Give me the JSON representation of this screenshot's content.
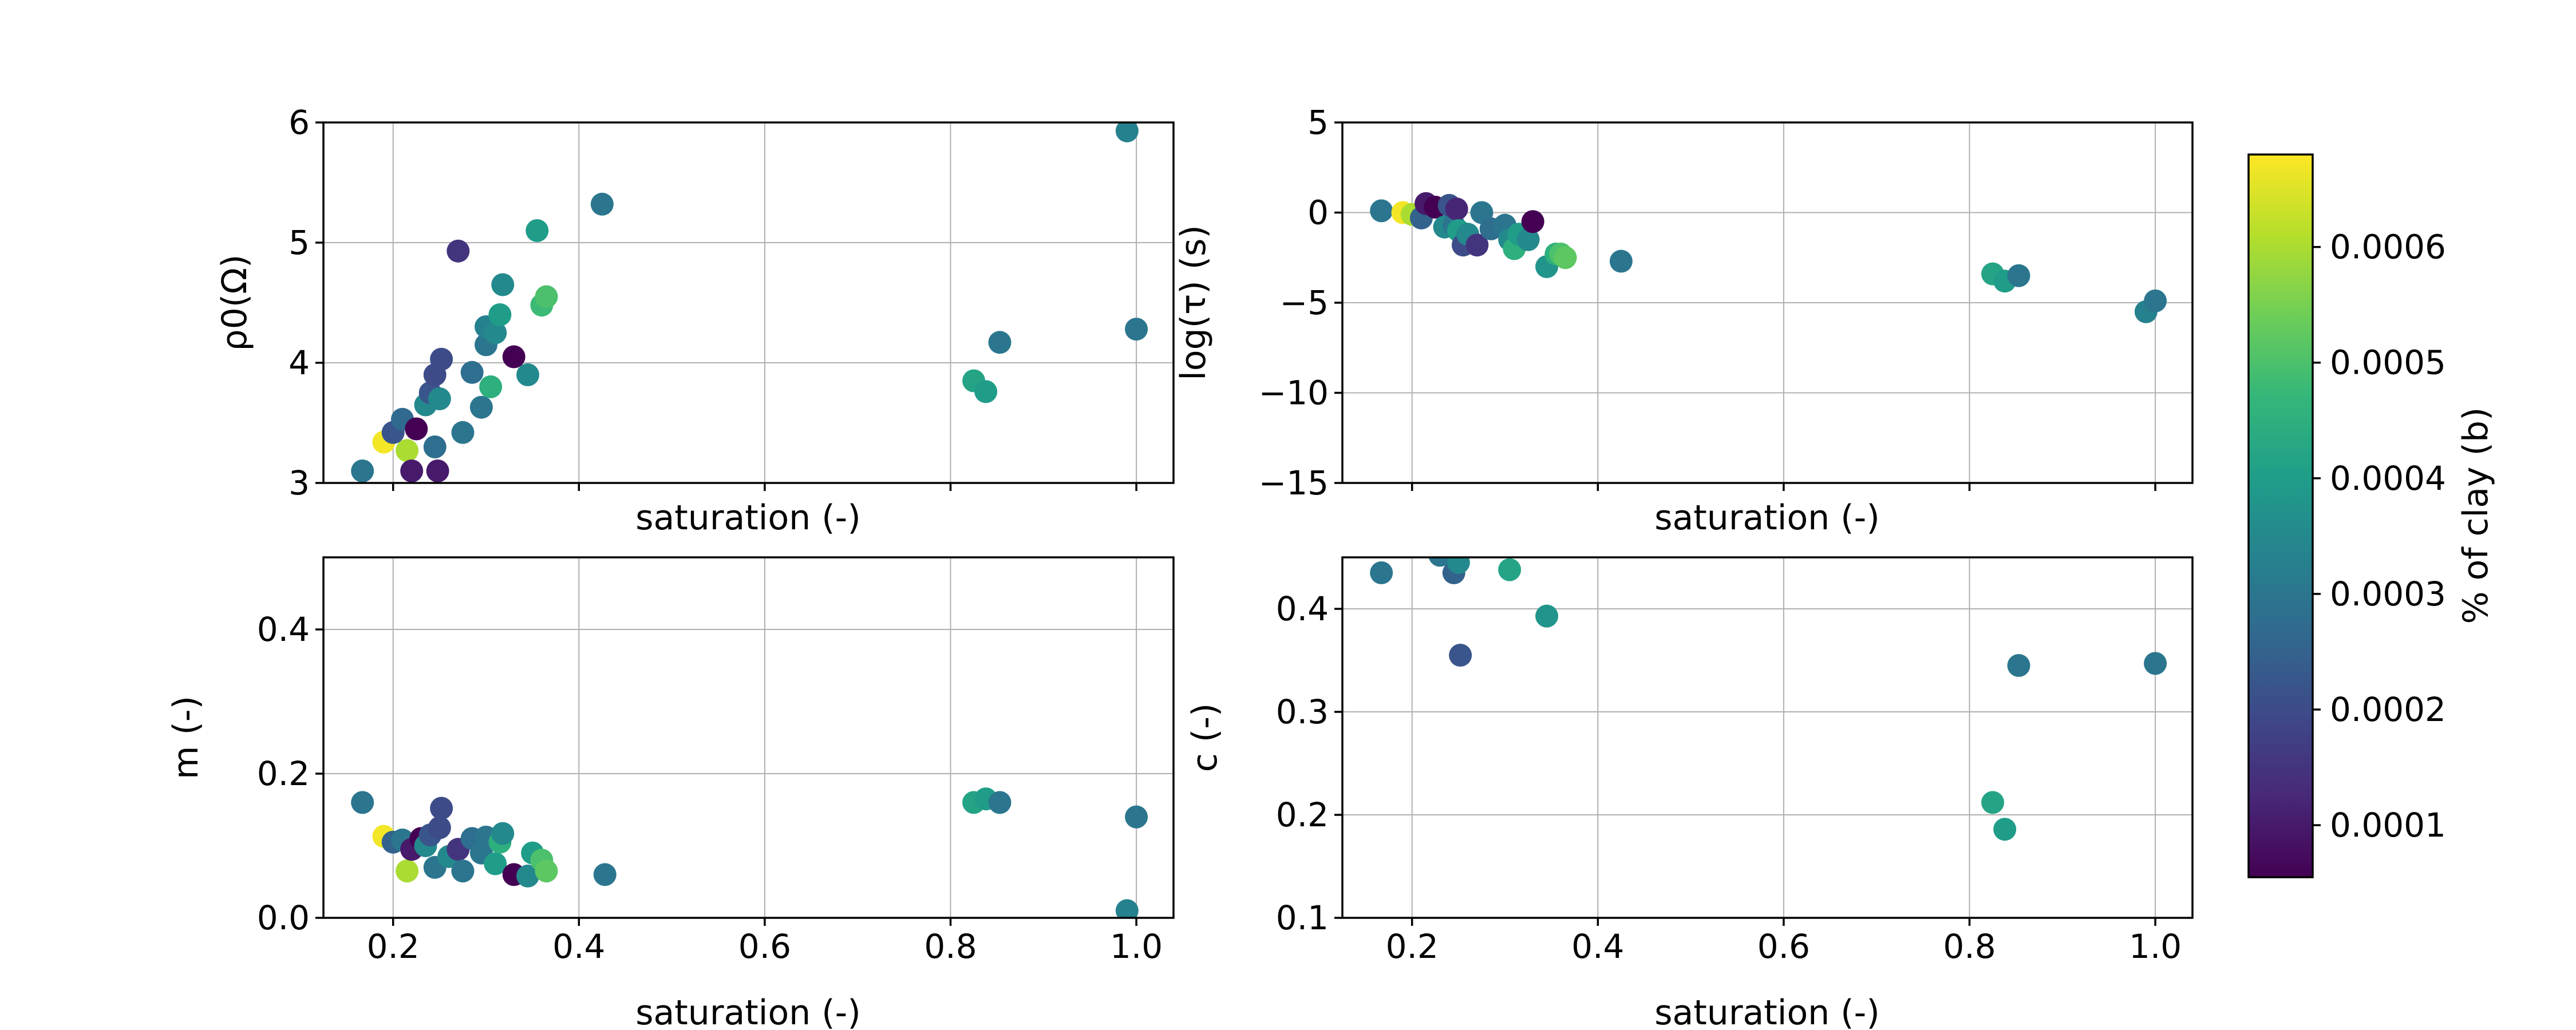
{
  "colors": {
    "viridis": [
      "#440154",
      "#482878",
      "#3e4989",
      "#31688e",
      "#26828e",
      "#1f9e89",
      "#35b779",
      "#6ece58",
      "#b5de2b",
      "#fde725"
    ]
  },
  "chart_data": [
    {
      "type": "scatter",
      "xlabel": "saturation (-)",
      "ylabel": "ρ0(Ω)",
      "ylim": [
        3,
        6
      ],
      "xlim": [
        0.125,
        1.04
      ],
      "yticks": [
        "3",
        "4",
        "5",
        "6"
      ],
      "xticks": [],
      "grid": true,
      "points": [
        {
          "x": 0.167,
          "y": 3.1,
          "c": 0.0003
        },
        {
          "x": 0.19,
          "y": 3.34,
          "c": 0.00067
        },
        {
          "x": 0.2,
          "y": 3.42,
          "c": 0.00022
        },
        {
          "x": 0.21,
          "y": 3.53,
          "c": 0.00027
        },
        {
          "x": 0.215,
          "y": 3.27,
          "c": 0.0006
        },
        {
          "x": 0.22,
          "y": 3.1,
          "c": 0.0001
        },
        {
          "x": 0.225,
          "y": 3.45,
          "c": 5e-05
        },
        {
          "x": 0.235,
          "y": 3.65,
          "c": 0.00035
        },
        {
          "x": 0.24,
          "y": 3.75,
          "c": 0.00022
        },
        {
          "x": 0.245,
          "y": 3.9,
          "c": 0.0002
        },
        {
          "x": 0.245,
          "y": 3.3,
          "c": 0.00028
        },
        {
          "x": 0.248,
          "y": 3.1,
          "c": 0.0001
        },
        {
          "x": 0.25,
          "y": 3.7,
          "c": 0.00035
        },
        {
          "x": 0.252,
          "y": 4.03,
          "c": 0.0002
        },
        {
          "x": 0.27,
          "y": 4.93,
          "c": 0.00015
        },
        {
          "x": 0.275,
          "y": 3.42,
          "c": 0.0003
        },
        {
          "x": 0.285,
          "y": 3.92,
          "c": 0.00028
        },
        {
          "x": 0.295,
          "y": 3.63,
          "c": 0.0003
        },
        {
          "x": 0.3,
          "y": 4.15,
          "c": 0.0003
        },
        {
          "x": 0.3,
          "y": 4.3,
          "c": 0.00033
        },
        {
          "x": 0.305,
          "y": 3.8,
          "c": 0.00045
        },
        {
          "x": 0.31,
          "y": 4.25,
          "c": 0.00035
        },
        {
          "x": 0.315,
          "y": 4.4,
          "c": 0.0004
        },
        {
          "x": 0.318,
          "y": 4.65,
          "c": 0.00035
        },
        {
          "x": 0.33,
          "y": 4.05,
          "c": 5e-05
        },
        {
          "x": 0.345,
          "y": 3.9,
          "c": 0.00035
        },
        {
          "x": 0.355,
          "y": 5.1,
          "c": 0.0004
        },
        {
          "x": 0.36,
          "y": 4.48,
          "c": 0.00048
        },
        {
          "x": 0.365,
          "y": 4.55,
          "c": 0.0005
        },
        {
          "x": 0.425,
          "y": 5.32,
          "c": 0.0003
        },
        {
          "x": 0.825,
          "y": 3.85,
          "c": 0.00042
        },
        {
          "x": 0.838,
          "y": 3.76,
          "c": 0.0004
        },
        {
          "x": 0.853,
          "y": 4.17,
          "c": 0.0003
        },
        {
          "x": 0.99,
          "y": 5.93,
          "c": 0.00033
        },
        {
          "x": 1.0,
          "y": 4.28,
          "c": 0.0003
        }
      ]
    },
    {
      "type": "scatter",
      "xlabel": "saturation (-)",
      "ylabel": "log(τ) (s)",
      "ylim": [
        -15,
        5
      ],
      "xlim": [
        0.125,
        1.04
      ],
      "yticks": [
        "−15",
        "−10",
        "−5",
        "0",
        "5"
      ],
      "xticks": [],
      "grid": true,
      "points": [
        {
          "x": 0.167,
          "y": 0.1,
          "c": 0.0003
        },
        {
          "x": 0.19,
          "y": 0.0,
          "c": 0.00067
        },
        {
          "x": 0.2,
          "y": -0.1,
          "c": 0.0006
        },
        {
          "x": 0.21,
          "y": -0.3,
          "c": 0.00025
        },
        {
          "x": 0.215,
          "y": 0.5,
          "c": 0.0001
        },
        {
          "x": 0.225,
          "y": 0.3,
          "c": 5e-05
        },
        {
          "x": 0.235,
          "y": -0.8,
          "c": 0.00035
        },
        {
          "x": 0.24,
          "y": 0.4,
          "c": 0.00022
        },
        {
          "x": 0.245,
          "y": -0.7,
          "c": 0.0003
        },
        {
          "x": 0.248,
          "y": 0.2,
          "c": 0.00012
        },
        {
          "x": 0.25,
          "y": -1.0,
          "c": 0.0004
        },
        {
          "x": 0.255,
          "y": -1.8,
          "c": 0.0002
        },
        {
          "x": 0.26,
          "y": -1.2,
          "c": 0.00035
        },
        {
          "x": 0.27,
          "y": -1.8,
          "c": 0.00015
        },
        {
          "x": 0.275,
          "y": 0.0,
          "c": 0.0003
        },
        {
          "x": 0.285,
          "y": -0.9,
          "c": 0.00028
        },
        {
          "x": 0.3,
          "y": -0.7,
          "c": 0.0003
        },
        {
          "x": 0.305,
          "y": -1.5,
          "c": 0.00035
        },
        {
          "x": 0.31,
          "y": -2.0,
          "c": 0.00045
        },
        {
          "x": 0.315,
          "y": -1.2,
          "c": 0.0004
        },
        {
          "x": 0.325,
          "y": -1.5,
          "c": 0.00035
        },
        {
          "x": 0.33,
          "y": -0.5,
          "c": 5e-05
        },
        {
          "x": 0.345,
          "y": -3.0,
          "c": 0.00038
        },
        {
          "x": 0.355,
          "y": -2.3,
          "c": 0.00045
        },
        {
          "x": 0.36,
          "y": -2.3,
          "c": 0.0005
        },
        {
          "x": 0.365,
          "y": -2.5,
          "c": 0.00052
        },
        {
          "x": 0.425,
          "y": -2.7,
          "c": 0.0003
        },
        {
          "x": 0.825,
          "y": -3.4,
          "c": 0.00042
        },
        {
          "x": 0.838,
          "y": -3.8,
          "c": 0.0004
        },
        {
          "x": 0.853,
          "y": -3.5,
          "c": 0.0003
        },
        {
          "x": 0.99,
          "y": -5.5,
          "c": 0.00033
        },
        {
          "x": 1.0,
          "y": -4.9,
          "c": 0.0003
        }
      ]
    },
    {
      "type": "scatter",
      "xlabel": "saturation (-)",
      "ylabel": "m (-)",
      "ylim": [
        0.0,
        0.5
      ],
      "xlim": [
        0.125,
        1.04
      ],
      "yticks": [
        "0.0",
        "0.2",
        "0.4"
      ],
      "xticks": [
        "0.2",
        "0.4",
        "0.6",
        "0.8",
        "1.0"
      ],
      "grid": true,
      "points": [
        {
          "x": 0.167,
          "y": 0.16,
          "c": 0.0003
        },
        {
          "x": 0.19,
          "y": 0.113,
          "c": 0.00067
        },
        {
          "x": 0.2,
          "y": 0.105,
          "c": 0.00025
        },
        {
          "x": 0.21,
          "y": 0.108,
          "c": 0.0003
        },
        {
          "x": 0.215,
          "y": 0.065,
          "c": 0.0006
        },
        {
          "x": 0.22,
          "y": 0.095,
          "c": 0.0001
        },
        {
          "x": 0.23,
          "y": 0.11,
          "c": 5e-05
        },
        {
          "x": 0.235,
          "y": 0.1,
          "c": 0.00035
        },
        {
          "x": 0.24,
          "y": 0.115,
          "c": 0.00022
        },
        {
          "x": 0.245,
          "y": 0.07,
          "c": 0.0003
        },
        {
          "x": 0.25,
          "y": 0.125,
          "c": 0.0002
        },
        {
          "x": 0.252,
          "y": 0.152,
          "c": 0.0002
        },
        {
          "x": 0.26,
          "y": 0.085,
          "c": 0.00035
        },
        {
          "x": 0.27,
          "y": 0.095,
          "c": 0.00015
        },
        {
          "x": 0.275,
          "y": 0.065,
          "c": 0.0003
        },
        {
          "x": 0.285,
          "y": 0.11,
          "c": 0.00028
        },
        {
          "x": 0.295,
          "y": 0.09,
          "c": 0.0003
        },
        {
          "x": 0.3,
          "y": 0.112,
          "c": 0.0003
        },
        {
          "x": 0.31,
          "y": 0.075,
          "c": 0.0004
        },
        {
          "x": 0.315,
          "y": 0.105,
          "c": 0.00045
        },
        {
          "x": 0.318,
          "y": 0.117,
          "c": 0.00035
        },
        {
          "x": 0.33,
          "y": 0.06,
          "c": 5e-05
        },
        {
          "x": 0.345,
          "y": 0.058,
          "c": 0.00035
        },
        {
          "x": 0.35,
          "y": 0.09,
          "c": 0.0004
        },
        {
          "x": 0.36,
          "y": 0.08,
          "c": 0.0005
        },
        {
          "x": 0.365,
          "y": 0.065,
          "c": 0.00052
        },
        {
          "x": 0.428,
          "y": 0.06,
          "c": 0.0003
        },
        {
          "x": 0.825,
          "y": 0.16,
          "c": 0.00042
        },
        {
          "x": 0.838,
          "y": 0.165,
          "c": 0.0004
        },
        {
          "x": 0.853,
          "y": 0.16,
          "c": 0.0003
        },
        {
          "x": 0.99,
          "y": 0.01,
          "c": 0.00033
        },
        {
          "x": 1.0,
          "y": 0.14,
          "c": 0.0003
        }
      ]
    },
    {
      "type": "scatter",
      "xlabel": "saturation (-)",
      "ylabel": "c (-)",
      "ylim": [
        0.1,
        0.45
      ],
      "xlim": [
        0.125,
        1.04
      ],
      "yticks": [
        "0.1",
        "0.2",
        "0.3",
        "0.4"
      ],
      "xticks": [
        "0.2",
        "0.4",
        "0.6",
        "0.8",
        "1.0"
      ],
      "grid": true,
      "points": [
        {
          "x": 0.167,
          "y": 0.435,
          "c": 0.0003
        },
        {
          "x": 0.23,
          "y": 0.452,
          "c": 0.0003
        },
        {
          "x": 0.245,
          "y": 0.435,
          "c": 0.00025
        },
        {
          "x": 0.25,
          "y": 0.445,
          "c": 0.00035
        },
        {
          "x": 0.252,
          "y": 0.355,
          "c": 0.00022
        },
        {
          "x": 0.305,
          "y": 0.438,
          "c": 0.00042
        },
        {
          "x": 0.345,
          "y": 0.393,
          "c": 0.00038
        },
        {
          "x": 0.825,
          "y": 0.212,
          "c": 0.00042
        },
        {
          "x": 0.838,
          "y": 0.186,
          "c": 0.0004
        },
        {
          "x": 0.853,
          "y": 0.345,
          "c": 0.0003
        },
        {
          "x": 1.0,
          "y": 0.347,
          "c": 0.0003
        }
      ]
    }
  ],
  "colorbar": {
    "label": "% of clay (b)",
    "min": 5.5e-05,
    "max": 0.00068,
    "ticks": [
      {
        "value": 0.0001,
        "label": "0.0001"
      },
      {
        "value": 0.0002,
        "label": "0.0002"
      },
      {
        "value": 0.0003,
        "label": "0.0003"
      },
      {
        "value": 0.0004,
        "label": "0.0004"
      },
      {
        "value": 0.0005,
        "label": "0.0005"
      },
      {
        "value": 0.0006,
        "label": "0.0006"
      }
    ]
  }
}
